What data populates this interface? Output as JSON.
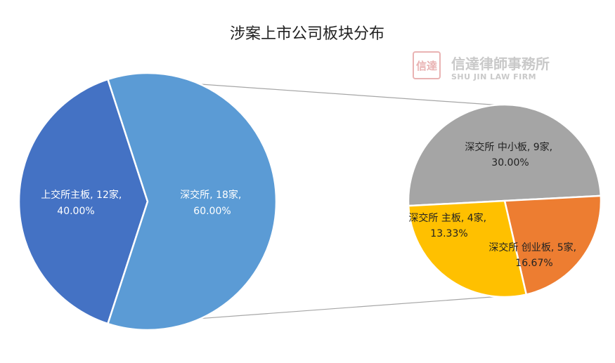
{
  "chart_data": {
    "type": "pie",
    "subtype": "pie-of-pie",
    "title": "涉案上市公司板块分布",
    "main_pie": {
      "slices": [
        {
          "name": "上交所主板",
          "value": 12,
          "unit": "家",
          "percent": "40.00%",
          "color": "#4472C4"
        },
        {
          "name": "深交所",
          "value": 18,
          "unit": "家",
          "percent": "60.00%",
          "color": "#5B9BD5"
        }
      ]
    },
    "secondary_pie": {
      "parent": "深交所",
      "slices": [
        {
          "name": "深交所 中小板",
          "value": 9,
          "unit": "家",
          "percent": "30.00%",
          "color": "#A5A5A5"
        },
        {
          "name": "深交所 主板",
          "value": 4,
          "unit": "家",
          "percent": "13.33%",
          "color": "#ED7D31"
        },
        {
          "name": "深交所 创业板",
          "value": 5,
          "unit": "家",
          "percent": "16.67%",
          "color": "#FFC000"
        }
      ]
    },
    "labels": {
      "main_0_line1": "上交所主板, 12家,",
      "main_0_line2": "40.00%",
      "main_1_line1": "深交所, 18家,",
      "main_1_line2": "60.00%",
      "sec_0_line1": "深交所 中小板, 9家,",
      "sec_0_line2": "30.00%",
      "sec_1_line1": "深交所 主板, 4家,",
      "sec_1_line2": "13.33%",
      "sec_2_line1": "深交所 创业板, 5家,",
      "sec_2_line2": "16.67%"
    },
    "connector_color": "#A6A6A6"
  },
  "watermark": {
    "seal_text": "信達",
    "name_cn": "信達律師事務所",
    "name_en": "SHU JIN LAW FIRM",
    "color": "#c9c9c9",
    "seal_color": "#e9b3b3"
  }
}
